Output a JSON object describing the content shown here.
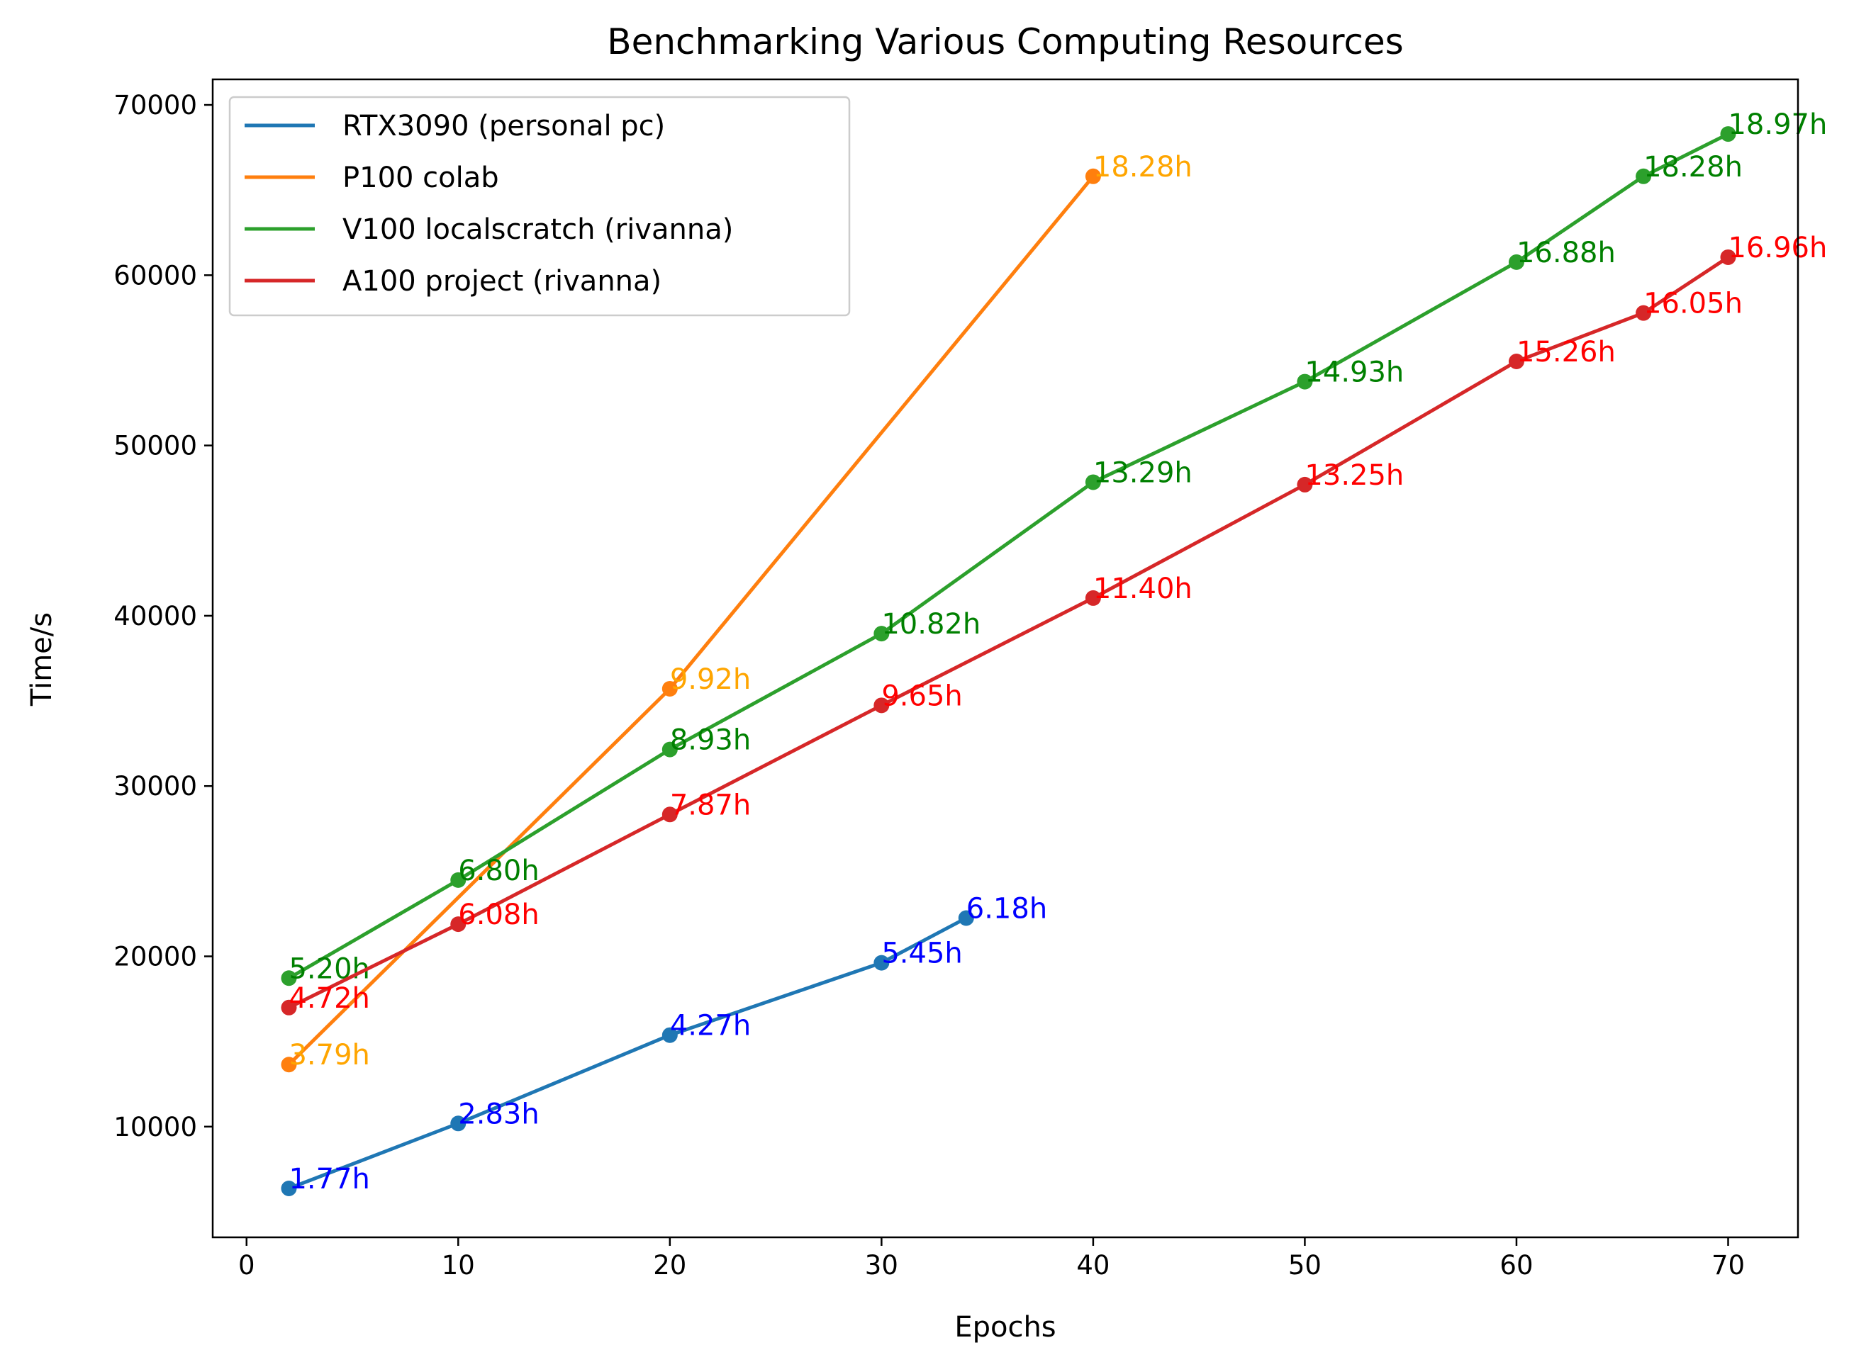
{
  "chart_data": {
    "type": "line",
    "title": "Benchmarking Various Computing Resources",
    "xlabel": "Epochs",
    "ylabel": "Time/s",
    "xlim": [
      -1.6,
      73.3
    ],
    "ylim": [
      3500,
      71500
    ],
    "xticks": [
      0,
      10,
      20,
      30,
      40,
      50,
      60,
      70
    ],
    "yticks": [
      10000,
      20000,
      30000,
      40000,
      50000,
      60000,
      70000
    ],
    "xtick_labels": [
      "0",
      "10",
      "20",
      "30",
      "40",
      "50",
      "60",
      "70"
    ],
    "ytick_labels": [
      "10000",
      "20000",
      "30000",
      "40000",
      "50000",
      "60000",
      "70000"
    ],
    "grid": false,
    "legend_position": "top-left",
    "series": [
      {
        "name": "RTX3090 (personal pc)",
        "color": "#1f77b4",
        "label_color": "#0000ff",
        "x": [
          2,
          10,
          20,
          30,
          34
        ],
        "y": [
          6372,
          10188,
          15372,
          19620,
          22248
        ],
        "labels": [
          "1.77h",
          "2.83h",
          "4.27h",
          "5.45h",
          "6.18h"
        ]
      },
      {
        "name": "P100 colab",
        "color": "#ff7f0e",
        "label_color": "#ffa500",
        "x": [
          2,
          20,
          40
        ],
        "y": [
          13644,
          35712,
          65808
        ],
        "labels": [
          "3.79h",
          "9.92h",
          "18.28h"
        ]
      },
      {
        "name": "V100 localscratch (rivanna)",
        "color": "#2ca02c",
        "label_color": "#008000",
        "x": [
          2,
          10,
          20,
          30,
          40,
          50,
          60,
          66,
          70
        ],
        "y": [
          18720,
          24480,
          32148,
          38952,
          47844,
          53748,
          60768,
          65808,
          68292
        ],
        "labels": [
          "5.20h",
          "6.80h",
          "8.93h",
          "10.82h",
          "13.29h",
          "14.93h",
          "16.88h",
          "18.28h",
          "18.97h"
        ]
      },
      {
        "name": "A100 project (rivanna)",
        "color": "#d62728",
        "label_color": "#ff0000",
        "x": [
          2,
          10,
          20,
          30,
          40,
          50,
          60,
          66,
          70
        ],
        "y": [
          16992,
          21888,
          28332,
          34740,
          41040,
          47700,
          54936,
          57780,
          61056
        ],
        "labels": [
          "4.72h",
          "6.08h",
          "7.87h",
          "9.65h",
          "11.40h",
          "13.25h",
          "15.26h",
          "16.05h",
          "16.96h"
        ]
      }
    ]
  }
}
